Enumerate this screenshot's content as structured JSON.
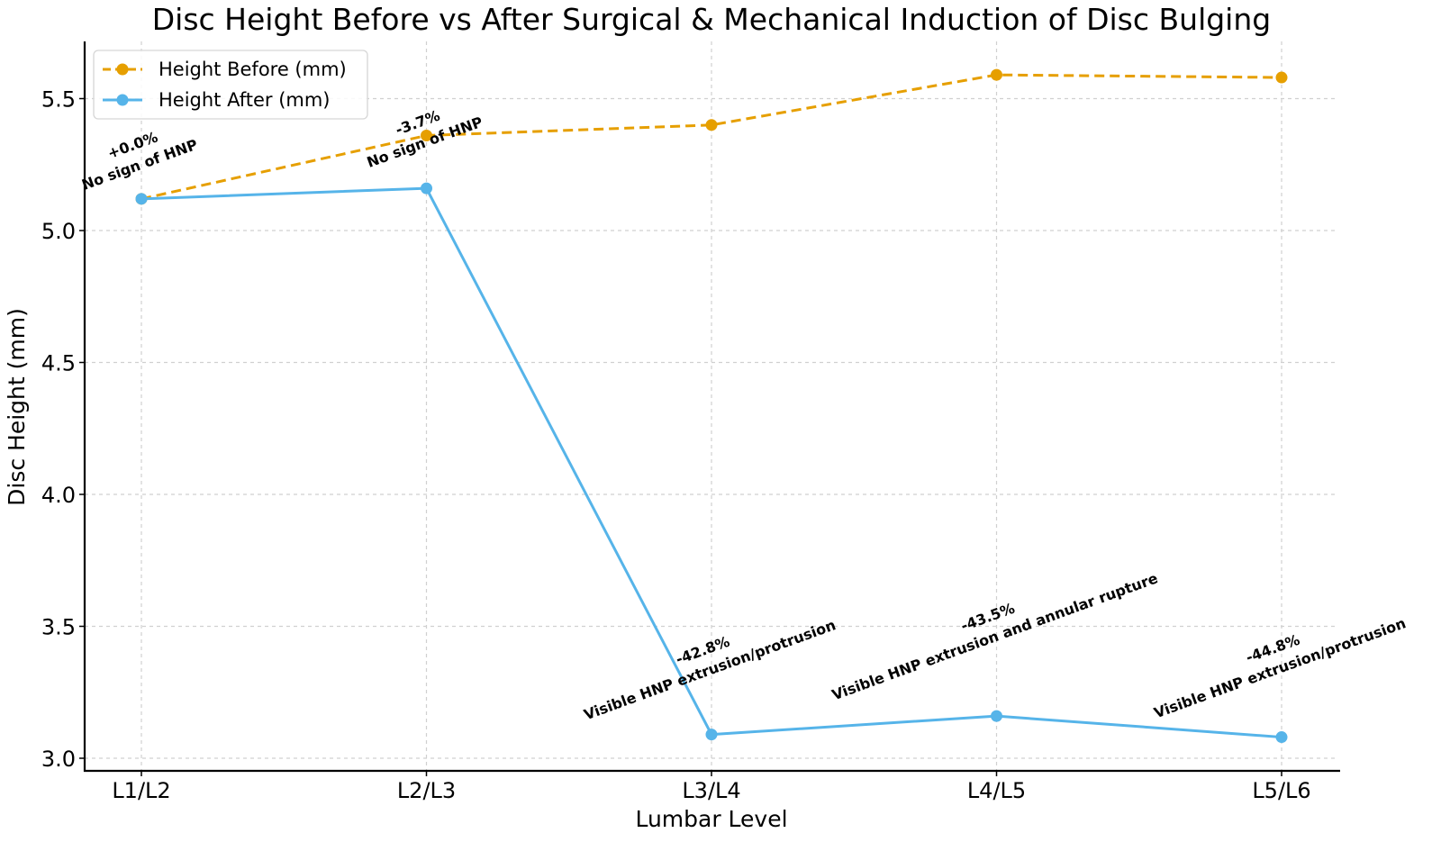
{
  "chart_data": {
    "type": "line",
    "title": "Disc Height Before vs After Surgical & Mechanical Induction of Disc Bulging",
    "xlabel": "Lumbar Level",
    "ylabel": "Disc Height (mm)",
    "categories": [
      "L1/L2",
      "L2/L3",
      "L3/L4",
      "L4/L5",
      "L5/L6"
    ],
    "ylim": [
      2.96,
      5.72
    ],
    "yticks": [
      3.0,
      3.5,
      4.0,
      4.5,
      5.0,
      5.5
    ],
    "ytick_labels": [
      "3.0",
      "3.5",
      "4.0",
      "4.5",
      "5.0",
      "5.5"
    ],
    "grid": true,
    "legend_position": "top-left",
    "series": [
      {
        "name": "Height Before (mm)",
        "values": [
          5.12,
          5.36,
          5.4,
          5.59,
          5.58
        ],
        "color": "#E69F00",
        "style": "dashed"
      },
      {
        "name": "Height After (mm)",
        "values": [
          5.12,
          5.16,
          3.09,
          3.16,
          3.08
        ],
        "color": "#56B4E9",
        "style": "solid"
      }
    ],
    "annotations": [
      {
        "category": "L1/L2",
        "change": "+0.0%",
        "note": "No sign of HNP"
      },
      {
        "category": "L2/L3",
        "change": "-3.7%",
        "note": "No sign of HNP"
      },
      {
        "category": "L3/L4",
        "change": "-42.8%",
        "note": "Visible HNP extrusion/protrusion"
      },
      {
        "category": "L4/L5",
        "change": "-43.5%",
        "note": "Visible HNP extrusion and annular rupture"
      },
      {
        "category": "L5/L6",
        "change": "-44.8%",
        "note": "Visible HNP extrusion/protrusion"
      }
    ]
  }
}
